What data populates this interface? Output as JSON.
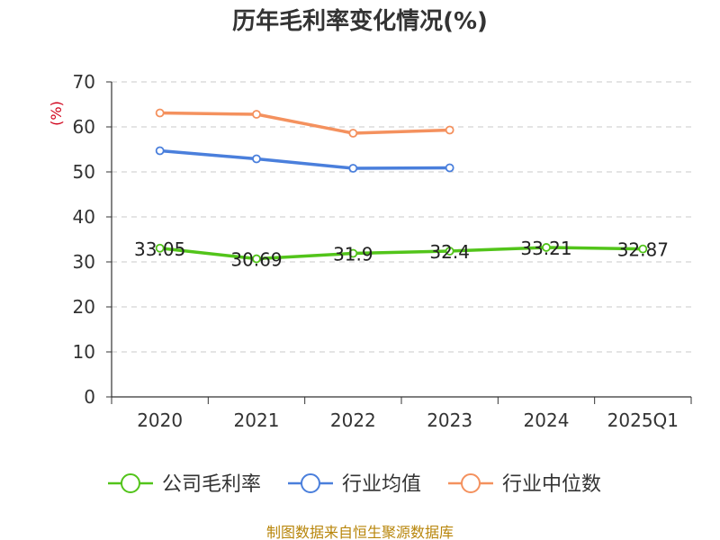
{
  "chart_data": {
    "type": "line",
    "title": "历年毛利率变化情况(%)",
    "ylabel": "(%)",
    "xlabel": "",
    "categories": [
      "2020",
      "2021",
      "2022",
      "2023",
      "2024",
      "2025Q1"
    ],
    "ylim": [
      0,
      70
    ],
    "yticks": [
      0,
      10,
      20,
      30,
      40,
      50,
      60,
      70
    ],
    "grid": true,
    "legend_position": "bottom",
    "series": [
      {
        "name": "公司毛利率",
        "color": "#52c41a",
        "values": [
          33.05,
          30.69,
          31.9,
          32.4,
          33.21,
          32.87
        ],
        "labels": [
          "33.05",
          "30.69",
          "31.9",
          "32.4",
          "33.21",
          "32.87"
        ]
      },
      {
        "name": "行业均值",
        "color": "#4a7fdc",
        "values": [
          54.7,
          52.9,
          50.8,
          50.9,
          null,
          null
        ]
      },
      {
        "name": "行业中位数",
        "color": "#f4915e",
        "values": [
          63.1,
          62.8,
          58.6,
          59.3,
          null,
          null
        ]
      }
    ]
  },
  "source": "制图数据来自恒生聚源数据库"
}
